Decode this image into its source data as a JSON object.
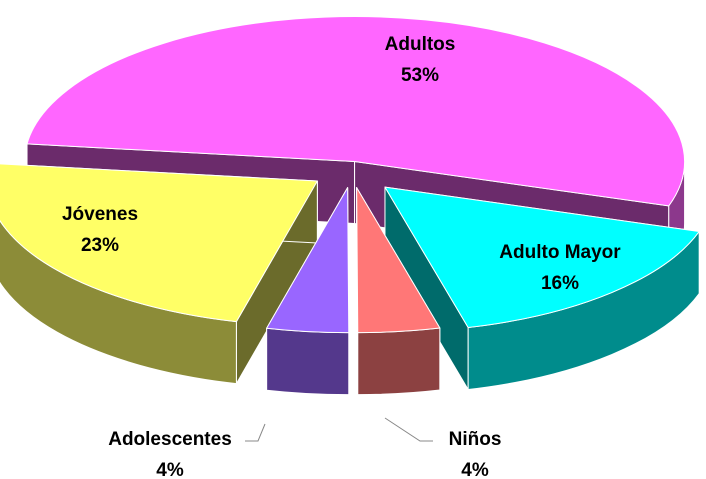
{
  "chart_data": {
    "type": "pie",
    "categories": [
      "Adultos",
      "Adulto Mayor",
      "Niños",
      "Adolescentes",
      "Jóvenes"
    ],
    "values": [
      53,
      16,
      4,
      4,
      23
    ],
    "value_labels": [
      "53%",
      "16%",
      "4%",
      "4%",
      "23%"
    ],
    "colors": [
      "#ff66ff",
      "#00ffff",
      "#ff7777",
      "#9966ff",
      "#ffff66"
    ]
  }
}
